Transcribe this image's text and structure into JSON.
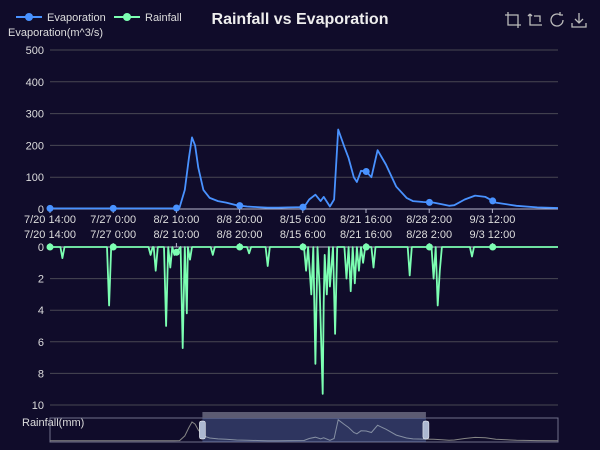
{
  "chart_data": {
    "type": "line",
    "title": "Rainfall vs Evaporation",
    "legend": {
      "position": "top-left",
      "items": [
        {
          "name": "Evaporation",
          "color": "#4992ff"
        },
        {
          "name": "Rainfall",
          "color": "#7cffb2"
        }
      ]
    },
    "toolbox": [
      "zoom-icon",
      "zoom-reset-icon",
      "restore-icon",
      "download-icon"
    ],
    "x_tick_labels": [
      "7/20 14:00",
      "7/27 0:00",
      "8/2 10:00",
      "8/8 20:00",
      "8/15 6:00",
      "8/21 16:00",
      "8/28 2:00",
      "9/3 12:00"
    ],
    "x_range_days": [
      0,
      49
    ],
    "top_axis": {
      "name": "Evaporation(m^3/s)",
      "range": [
        0,
        500
      ],
      "ticks": [
        "0",
        "100",
        "200",
        "300",
        "400",
        "500"
      ]
    },
    "bottom_axis": {
      "name": "Rainfall(mm)",
      "range": [
        0,
        10
      ],
      "inverse": true,
      "ticks": [
        "0",
        "2",
        "4",
        "6",
        "8",
        "10"
      ]
    },
    "series": [
      {
        "name": "Evaporation",
        "color": "#4992ff",
        "x": [
          0,
          12,
          12.5,
          13.0,
          13.4,
          13.7,
          14.0,
          14.3,
          14.8,
          15.4,
          16.2,
          17.0,
          18.0,
          19.0,
          20.0,
          21.0,
          22.0,
          23.0,
          24.5,
          25.0,
          25.6,
          26.1,
          26.4,
          27.0,
          27.4,
          27.8,
          28.4,
          28.8,
          29.3,
          29.6,
          30.0,
          30.5,
          31.0,
          31.6,
          32.4,
          33.4,
          34.4,
          35.0,
          36.0,
          37.0,
          37.8,
          38.5,
          39.0,
          40.0,
          41.0,
          42.0,
          43.0,
          45.0,
          47.0,
          49.0
        ],
        "y": [
          2,
          2,
          5,
          60,
          160,
          225,
          200,
          130,
          60,
          35,
          25,
          20,
          12,
          8,
          6,
          4,
          4,
          5,
          6,
          30,
          45,
          25,
          38,
          8,
          30,
          250,
          195,
          160,
          100,
          85,
          120,
          118,
          100,
          185,
          140,
          70,
          35,
          25,
          22,
          20,
          15,
          10,
          12,
          30,
          42,
          38,
          20,
          10,
          5,
          3
        ]
      },
      {
        "name": "Rainfall",
        "color": "#7cffb2",
        "x": [
          0,
          1.0,
          1.2,
          1.4,
          5.5,
          5.7,
          5.9,
          9.5,
          9.7,
          9.9,
          10.0,
          10.2,
          10.4,
          11.0,
          11.2,
          11.4,
          11.6,
          11.8,
          12.0,
          12.6,
          12.8,
          13.0,
          13.2,
          13.3,
          13.5,
          13.7,
          15.5,
          15.7,
          15.9,
          19.0,
          19.2,
          19.4,
          20.8,
          21.0,
          21.2,
          24.5,
          24.7,
          24.9,
          25.2,
          25.4,
          25.6,
          25.8,
          26.0,
          26.3,
          26.4,
          26.5,
          26.7,
          26.9,
          27.0,
          27.3,
          27.5,
          27.7,
          28.4,
          28.6,
          28.8,
          29.0,
          29.2,
          29.4,
          29.6,
          29.8,
          30.0,
          30.2,
          30.4,
          30.6,
          31.0,
          31.2,
          31.4,
          34.5,
          34.7,
          34.9,
          36.8,
          37.0,
          37.2,
          37.4,
          37.6,
          37.8,
          40.5,
          40.7,
          40.9,
          49.0
        ],
        "y": [
          0,
          0,
          0.7,
          0,
          0,
          3.7,
          0,
          0,
          0.5,
          0,
          0,
          1.5,
          0,
          0,
          5.0,
          0,
          1.3,
          0,
          0.5,
          0,
          6.4,
          0,
          4.2,
          0,
          0.8,
          0,
          0,
          0.5,
          0,
          0,
          0.4,
          0,
          0,
          1.2,
          0,
          0,
          1.5,
          0,
          3.0,
          0,
          7.4,
          0,
          2.5,
          9.3,
          3.5,
          0.5,
          3.0,
          0,
          2.5,
          0,
          5.5,
          0,
          0,
          2.0,
          0,
          2.8,
          0,
          2.3,
          0,
          1.5,
          0,
          1.0,
          0,
          0,
          0,
          1.3,
          0,
          0,
          1.8,
          0,
          0,
          2.0,
          0,
          3.7,
          1.5,
          0,
          0,
          0.6,
          0,
          0
        ]
      }
    ],
    "grid": true,
    "data_zoom": {
      "start_fraction": 0.3,
      "end_fraction": 0.74
    }
  }
}
